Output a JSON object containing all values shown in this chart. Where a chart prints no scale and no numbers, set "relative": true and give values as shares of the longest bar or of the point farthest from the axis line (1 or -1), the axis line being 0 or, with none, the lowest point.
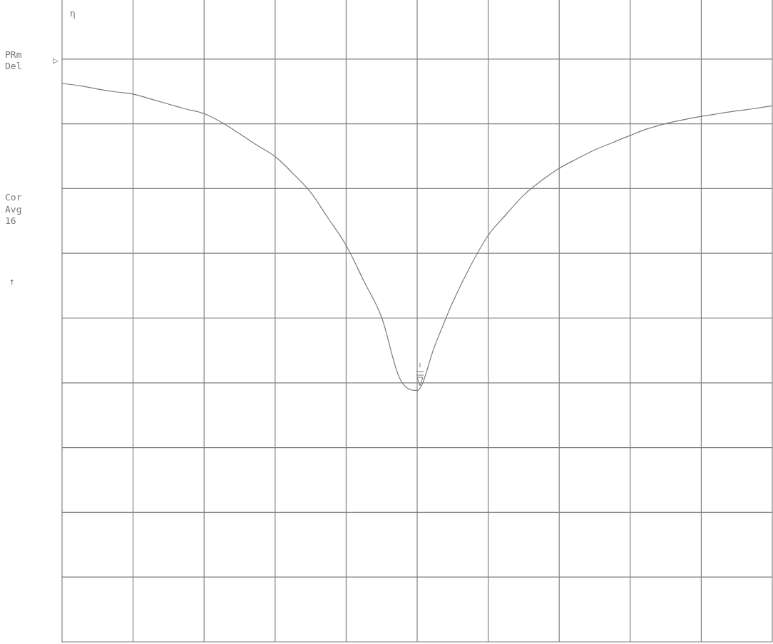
{
  "chart_data": {
    "type": "line",
    "relative": true,
    "grid": true,
    "marker": "none",
    "categories": [
      null,
      null,
      null,
      null,
      null,
      null,
      null,
      null,
      null,
      null,
      null,
      null,
      null,
      null,
      null,
      null,
      null,
      null,
      null,
      null,
      null,
      null,
      null,
      null,
      null,
      null,
      null,
      null,
      null,
      null,
      null,
      null,
      null,
      null,
      null,
      null,
      null,
      null,
      null,
      null,
      null
    ],
    "series": [
      {
        "color": "#7a7a7a",
        "values": [
          1.0,
          0.996,
          0.99,
          0.985,
          0.981,
          0.972,
          0.963,
          0.954,
          0.946,
          0.93,
          0.91,
          0.889,
          0.869,
          0.839,
          0.805,
          0.758,
          0.71,
          0.646,
          0.581,
          0.473,
          0.45,
          0.531,
          0.608,
          0.673,
          0.728,
          0.765,
          0.8,
          0.826,
          0.848,
          0.865,
          0.881,
          0.894,
          0.907,
          0.919,
          0.928,
          0.935,
          0.941,
          0.946,
          0.951,
          0.955,
          0.96
        ]
      }
    ],
    "annotations": [
      "η",
      "PRm",
      "Del",
      "▷",
      "Cor",
      "Avg",
      "16",
      "↑"
    ]
  }
}
